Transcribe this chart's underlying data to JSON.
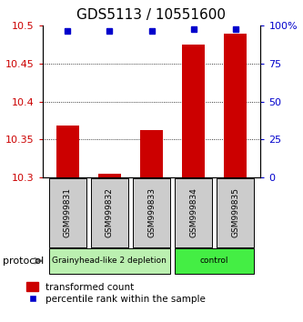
{
  "title": "GDS5113 / 10551600",
  "samples": [
    "GSM999831",
    "GSM999832",
    "GSM999833",
    "GSM999834",
    "GSM999835"
  ],
  "transformed_counts": [
    10.368,
    10.305,
    10.362,
    10.475,
    10.49
  ],
  "percentile_ranks": [
    96.5,
    96.5,
    96.5,
    97.5,
    98.0
  ],
  "ylim_left": [
    10.3,
    10.5
  ],
  "ylim_right": [
    0,
    100
  ],
  "yticks_left": [
    10.3,
    10.35,
    10.4,
    10.45,
    10.5
  ],
  "ytick_labels_left": [
    "10.3",
    "10.35",
    "10.4",
    "10.45",
    "10.5"
  ],
  "yticks_right": [
    0,
    25,
    50,
    75,
    100
  ],
  "ytick_labels_right": [
    "0",
    "25",
    "50",
    "75",
    "100%"
  ],
  "grid_lines": [
    10.35,
    10.4,
    10.45
  ],
  "bar_color": "#cc0000",
  "dot_color": "#0000cc",
  "bar_width": 0.55,
  "groups": [
    {
      "label": "Grainyhead-like 2 depletion",
      "indices": [
        0,
        1,
        2
      ],
      "color": "#bbf0b0"
    },
    {
      "label": "control",
      "indices": [
        3,
        4
      ],
      "color": "#44ee44"
    }
  ],
  "protocol_label": "protocol",
  "legend_bar_label": "transformed count",
  "legend_dot_label": "percentile rank within the sample",
  "title_fontsize": 11,
  "tick_fontsize": 8,
  "left_axis_color": "#cc0000",
  "right_axis_color": "#0000cc",
  "sample_box_color": "#cccccc"
}
